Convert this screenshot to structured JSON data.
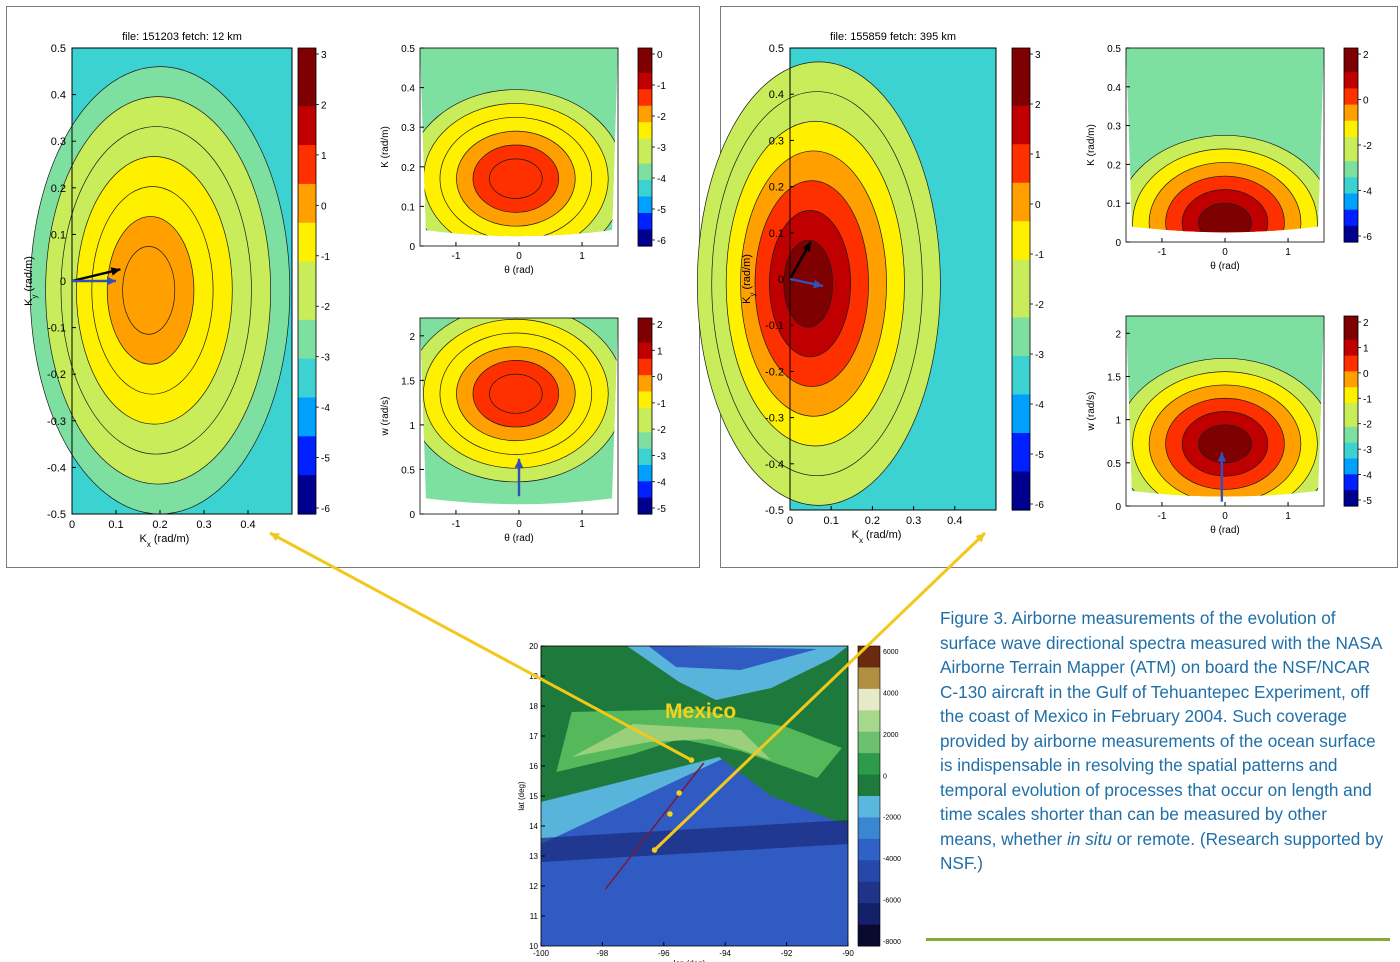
{
  "colors": {
    "jet": [
      "#00008f",
      "#0020ff",
      "#00a0ff",
      "#3cd2d2",
      "#7ee0a0",
      "#c8ec5a",
      "#fff000",
      "#ffa000",
      "#ff3000",
      "#c00000",
      "#7f0000"
    ],
    "arrow_black": "#000000",
    "arrow_blue": "#3350b8",
    "connector": "#f2c81a",
    "caption_text": "#1f6fa8",
    "caption_rule": "#8aa832",
    "map_label": "#f5d21a",
    "track": "#f5d21a"
  },
  "chart_data": [
    {
      "id": "left-kxky",
      "type": "heatmap",
      "title": "file:  151203  fetch: 12 km",
      "xlabel": "K_x (rad/m)",
      "ylabel": "K_y (rad/m)",
      "xlim": [
        0,
        0.5
      ],
      "ylim": [
        -0.5,
        0.5
      ],
      "xticks": [
        "0",
        "0.1",
        "0.2",
        "0.3",
        "0.4"
      ],
      "yticks": [
        "0.5",
        "0.4",
        "0.3",
        "0.2",
        "0.1",
        "0",
        "-0.1",
        "-0.2",
        "-0.3",
        "-0.4",
        "-0.5"
      ],
      "colorbar_ticks": [
        "3",
        "2",
        "1",
        "0",
        "-1",
        "-2",
        "-3",
        "-4",
        "-5",
        "-6"
      ],
      "colorbar_range": [
        -6,
        3
      ],
      "peak": {
        "kx": 0.17,
        "ky": -0.02,
        "value": 0.3
      },
      "arrows": [
        {
          "color": "black",
          "from": [
            0,
            0
          ],
          "to": [
            0.11,
            0.025
          ]
        },
        {
          "color": "blue",
          "from": [
            0,
            0
          ],
          "to": [
            0.1,
            0
          ]
        }
      ]
    },
    {
      "id": "left-ktheta",
      "type": "heatmap",
      "xlabel": "θ (rad)",
      "ylabel": "K (rad/m)",
      "xlim": [
        -1.57,
        1.57
      ],
      "ylim": [
        0,
        0.5
      ],
      "xticks": [
        "-1",
        "0",
        "1"
      ],
      "yticks": [
        "0.5",
        "0.4",
        "0.3",
        "0.2",
        "0.1",
        "0"
      ],
      "colorbar_ticks": [
        "0",
        "-1",
        "-2",
        "-3",
        "-4",
        "-5",
        "-6"
      ],
      "colorbar_range": [
        -6,
        0.5
      ],
      "peak": {
        "theta": -0.05,
        "k": 0.17,
        "value": -0.8
      }
    },
    {
      "id": "left-wtheta",
      "type": "heatmap",
      "xlabel": "θ (rad)",
      "ylabel": "w (rad/s)",
      "xlim": [
        -1.57,
        1.57
      ],
      "ylim": [
        0,
        2.2
      ],
      "xticks": [
        "-1",
        "0",
        "1"
      ],
      "yticks": [
        "2",
        "1.5",
        "1",
        "0.5",
        "0"
      ],
      "colorbar_ticks": [
        "2",
        "1",
        "0",
        "-1",
        "-2",
        "-3",
        "-4",
        "-5"
      ],
      "colorbar_range": [
        -5,
        2
      ],
      "peak": {
        "theta": -0.05,
        "w": 1.35,
        "value": 0.6
      },
      "arrows": [
        {
          "color": "blue",
          "from": [
            0,
            0.2
          ],
          "to": [
            0,
            0.62
          ]
        }
      ]
    },
    {
      "id": "right-kxky",
      "type": "heatmap",
      "title": "file:  155859  fetch: 395 km",
      "xlabel": "K_x (rad/m)",
      "ylabel": "K_y (rad/m)",
      "xlim": [
        0,
        0.5
      ],
      "ylim": [
        -0.5,
        0.5
      ],
      "xticks": [
        "0",
        "0.1",
        "0.2",
        "0.3",
        "0.4"
      ],
      "yticks": [
        "0.5",
        "0.4",
        "0.3",
        "0.2",
        "0.1",
        "0",
        "-0.1",
        "-0.2",
        "-0.3",
        "-0.4",
        "-0.5"
      ],
      "colorbar_ticks": [
        "3",
        "2",
        "1",
        "0",
        "-1",
        "-2",
        "-3",
        "-4",
        "-5",
        "-6"
      ],
      "colorbar_range": [
        -6,
        3
      ],
      "peak": {
        "kx": 0.04,
        "ky": -0.01,
        "value": 2.5
      },
      "arrows": [
        {
          "color": "black",
          "from": [
            0,
            0
          ],
          "to": [
            0.05,
            0.08
          ]
        },
        {
          "color": "blue",
          "from": [
            0,
            0
          ],
          "to": [
            0.08,
            -0.015
          ]
        }
      ]
    },
    {
      "id": "right-ktheta",
      "type": "heatmap",
      "xlabel": "θ (rad)",
      "ylabel": "K (rad/m)",
      "xlim": [
        -1.57,
        1.57
      ],
      "ylim": [
        0,
        0.5
      ],
      "xticks": [
        "-1",
        "0",
        "1"
      ],
      "yticks": [
        "0.5",
        "0.4",
        "0.3",
        "0.2",
        "0.1",
        "0"
      ],
      "colorbar_ticks": [
        "2",
        "0",
        "-2",
        "-4",
        "-6"
      ],
      "colorbar_range": [
        -6,
        2.5
      ],
      "peak": {
        "theta": 0,
        "k": 0.05,
        "value": 2
      }
    },
    {
      "id": "right-wtheta",
      "type": "heatmap",
      "xlabel": "θ (rad)",
      "ylabel": "w (rad/s)",
      "xlim": [
        -1.57,
        1.57
      ],
      "ylim": [
        0,
        2.2
      ],
      "xticks": [
        "-1",
        "0",
        "1"
      ],
      "yticks": [
        "2",
        "1.5",
        "1",
        "0.5",
        "0"
      ],
      "colorbar_ticks": [
        "2",
        "1",
        "0",
        "-1",
        "-2",
        "-3",
        "-4",
        "-5"
      ],
      "colorbar_range": [
        -5,
        2
      ],
      "peak": {
        "theta": 0,
        "w": 0.72,
        "value": 1.8
      },
      "arrows": [
        {
          "color": "blue",
          "from": [
            -0.05,
            0.05
          ],
          "to": [
            -0.05,
            0.62
          ]
        }
      ]
    },
    {
      "id": "map",
      "type": "heatmap",
      "region_label": "Mexico",
      "xlabel": "lon (deg)",
      "ylabel": "lat (deg)",
      "xlim": [
        -100,
        -90
      ],
      "ylim": [
        10,
        20
      ],
      "xticks": [
        "-100",
        "-98",
        "-96",
        "-94",
        "-92",
        "-90"
      ],
      "yticks": [
        "20",
        "19",
        "18",
        "17",
        "16",
        "15",
        "14",
        "13",
        "12",
        "11",
        "10"
      ],
      "colorbar_ticks": [
        "6000",
        "4000",
        "2000",
        "0",
        "-2000",
        "-4000",
        "-6000",
        "-8000"
      ],
      "colorbar_range": [
        -8000,
        6000
      ],
      "track_points": [
        {
          "lon": -95.1,
          "lat": 16.2
        },
        {
          "lon": -95.5,
          "lat": 15.1
        },
        {
          "lon": -95.8,
          "lat": 14.4
        },
        {
          "lon": -96.3,
          "lat": 13.2
        }
      ],
      "flight_line": [
        {
          "lon": -94.7,
          "lat": 16.1
        },
        {
          "lon": -97.9,
          "lat": 11.9
        }
      ]
    }
  ],
  "caption": {
    "before_italic": "Figure 3. Airborne measurements of the evolution of surface wave directional spectra measured with the NASA Airborne Terrain Mapper (ATM) on board the NSF/NCAR C-130 aircraft in the Gulf of Tehuantepec Experiment, off the coast of Mexico in February 2004. Such coverage provided by airborne measurements of the ocean surface is indispensable in resolving the spatial patterns and temporal evolution of processes that occur on length and time scales shorter than can be measured by other means, whether ",
    "italic": "in situ",
    "after_italic": " or remote. (Research supported by NSF.)"
  }
}
